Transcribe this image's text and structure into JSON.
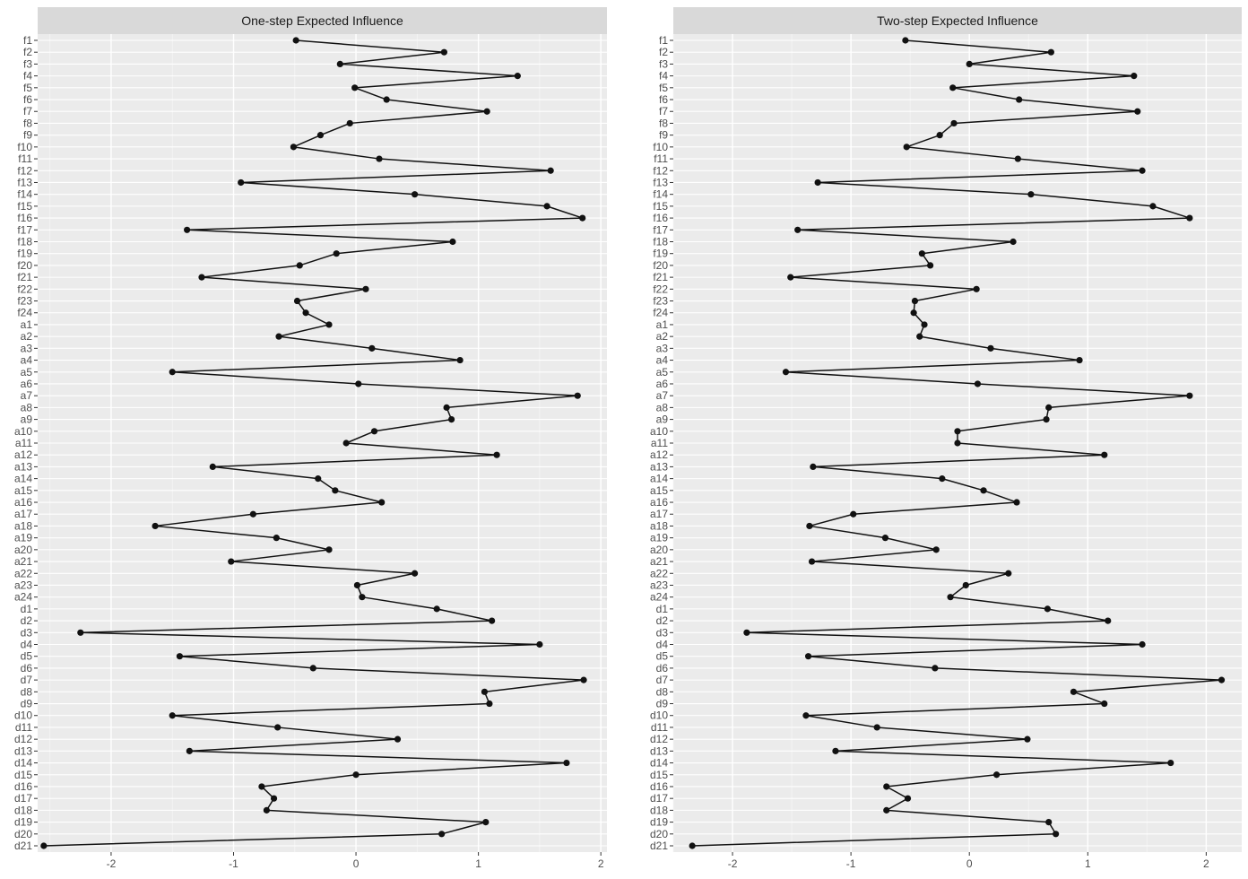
{
  "chart_data": [
    {
      "type": "line",
      "title": "One-step Expected Influence",
      "xlabel": "",
      "ylabel": "",
      "xlim": [
        -2.6,
        2.05
      ],
      "xticks": [
        -2,
        -1,
        0,
        1,
        2
      ],
      "grid": true,
      "categories": [
        "f1",
        "f2",
        "f3",
        "f4",
        "f5",
        "f6",
        "f7",
        "f8",
        "f9",
        "f10",
        "f11",
        "f12",
        "f13",
        "f14",
        "f15",
        "f16",
        "f17",
        "f18",
        "f19",
        "f20",
        "f21",
        "f22",
        "f23",
        "f24",
        "a1",
        "a2",
        "a3",
        "a4",
        "a5",
        "a6",
        "a7",
        "a8",
        "a9",
        "a10",
        "a11",
        "a12",
        "a13",
        "a14",
        "a15",
        "a16",
        "a17",
        "a18",
        "a19",
        "a20",
        "a21",
        "a22",
        "a23",
        "a24",
        "d1",
        "d2",
        "d3",
        "d4",
        "d5",
        "d6",
        "d7",
        "d8",
        "d9",
        "d10",
        "d11",
        "d12",
        "d13",
        "d14",
        "d15",
        "d16",
        "d17",
        "d18",
        "d19",
        "d20",
        "d21"
      ],
      "values": [
        -0.49,
        0.72,
        -0.13,
        1.32,
        -0.01,
        0.25,
        1.07,
        -0.05,
        -0.29,
        -0.51,
        0.19,
        1.59,
        -0.94,
        0.48,
        1.56,
        1.85,
        -1.38,
        0.79,
        -0.16,
        -0.46,
        -1.26,
        0.08,
        -0.48,
        -0.41,
        -0.22,
        -0.63,
        0.13,
        0.85,
        -1.5,
        0.02,
        1.81,
        0.74,
        0.78,
        0.15,
        -0.08,
        1.15,
        -1.17,
        -0.31,
        -0.17,
        0.21,
        -0.84,
        -1.64,
        -0.65,
        -0.22,
        -1.02,
        0.48,
        0.01,
        0.05,
        0.66,
        1.11,
        -2.25,
        1.5,
        -1.44,
        -0.35,
        1.86,
        1.05,
        1.09,
        -1.5,
        -0.64,
        0.34,
        -1.36,
        1.72,
        0.0,
        -0.77,
        -0.67,
        -0.73,
        1.06,
        0.7,
        -2.55
      ]
    },
    {
      "type": "line",
      "title": "Two-step Expected Influence",
      "xlabel": "",
      "ylabel": "",
      "xlim": [
        -2.5,
        2.3
      ],
      "xticks": [
        -2,
        -1,
        0,
        1,
        2
      ],
      "grid": true,
      "categories": [
        "f1",
        "f2",
        "f3",
        "f4",
        "f5",
        "f6",
        "f7",
        "f8",
        "f9",
        "f10",
        "f11",
        "f12",
        "f13",
        "f14",
        "f15",
        "f16",
        "f17",
        "f18",
        "f19",
        "f20",
        "f21",
        "f22",
        "f23",
        "f24",
        "a1",
        "a2",
        "a3",
        "a4",
        "a5",
        "a6",
        "a7",
        "a8",
        "a9",
        "a10",
        "a11",
        "a12",
        "a13",
        "a14",
        "a15",
        "a16",
        "a17",
        "a18",
        "a19",
        "a20",
        "a21",
        "a22",
        "a23",
        "a24",
        "d1",
        "d2",
        "d3",
        "d4",
        "d5",
        "d6",
        "d7",
        "d8",
        "d9",
        "d10",
        "d11",
        "d12",
        "d13",
        "d14",
        "d15",
        "d16",
        "d17",
        "d18",
        "d19",
        "d20",
        "d21"
      ],
      "values": [
        -0.54,
        0.69,
        0.0,
        1.39,
        -0.14,
        0.42,
        1.42,
        -0.13,
        -0.25,
        -0.53,
        0.41,
        1.46,
        -1.28,
        0.52,
        1.55,
        1.86,
        -1.45,
        0.37,
        -0.4,
        -0.33,
        -1.51,
        0.06,
        -0.46,
        -0.47,
        -0.38,
        -0.42,
        0.18,
        0.93,
        -1.55,
        0.07,
        1.86,
        0.67,
        0.65,
        -0.1,
        -0.1,
        1.14,
        -1.32,
        -0.23,
        0.12,
        0.4,
        -0.98,
        -1.35,
        -0.71,
        -0.28,
        -1.33,
        0.33,
        -0.03,
        -0.16,
        0.66,
        1.17,
        -1.88,
        1.46,
        -1.36,
        -0.29,
        2.13,
        0.88,
        1.14,
        -1.38,
        -0.78,
        0.49,
        -1.13,
        1.7,
        0.23,
        -0.7,
        -0.52,
        -0.7,
        0.67,
        0.73,
        -2.34
      ]
    }
  ]
}
